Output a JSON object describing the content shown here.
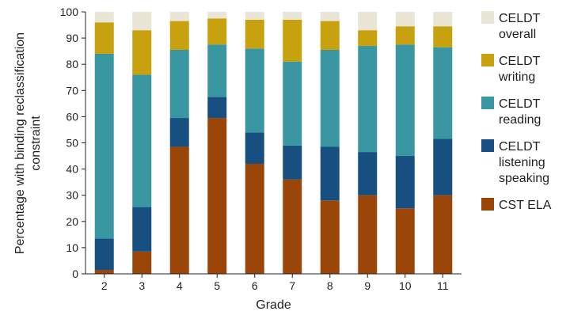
{
  "chart_data": {
    "type": "bar",
    "stacked": true,
    "xlabel": "Grade",
    "ylabel_lines": [
      "Percentage with binding reclassification",
      "constraint"
    ],
    "ylim": [
      0,
      100
    ],
    "yticks": [
      "0",
      "10",
      "20",
      "30",
      "40",
      "50",
      "60",
      "70",
      "80",
      "90",
      "100"
    ],
    "categories": [
      "2",
      "3",
      "4",
      "5",
      "6",
      "7",
      "8",
      "9",
      "10",
      "11"
    ],
    "series": [
      {
        "name": "CST ELA",
        "color": "#9b4508",
        "values": [
          1.5,
          8.5,
          48.5,
          59.5,
          42,
          36,
          28,
          30,
          25,
          30
        ]
      },
      {
        "name": "CELDT listening speaking",
        "color": "#164f80",
        "values": [
          12,
          17,
          11,
          8,
          12,
          13,
          20.5,
          16.5,
          20,
          21.5
        ]
      },
      {
        "name": "CELDT reading",
        "color": "#3897a1",
        "values": [
          70.5,
          50.5,
          26,
          20,
          32,
          32,
          37,
          40.5,
          42.5,
          35
        ]
      },
      {
        "name": "CELDT writing",
        "color": "#c7a10e",
        "values": [
          12,
          17,
          11,
          10,
          11,
          16,
          11,
          6,
          7,
          8
        ]
      },
      {
        "name": "CELDT overall",
        "color": "#e9e6d5",
        "values": [
          4,
          7,
          3.5,
          2.5,
          3,
          3,
          3.5,
          7,
          5.5,
          5.5
        ]
      }
    ],
    "legend": [
      {
        "lines": [
          "CELDT",
          "overall"
        ],
        "color": "#e9e6d5"
      },
      {
        "lines": [
          "CELDT",
          "writing"
        ],
        "color": "#c7a10e"
      },
      {
        "lines": [
          "CELDT",
          "reading"
        ],
        "color": "#3897a1"
      },
      {
        "lines": [
          "CELDT",
          "listening",
          "speaking"
        ],
        "color": "#164f80"
      },
      {
        "lines": [
          "CST ELA"
        ],
        "color": "#9b4508"
      }
    ],
    "legend_position": "right",
    "grid": false
  }
}
